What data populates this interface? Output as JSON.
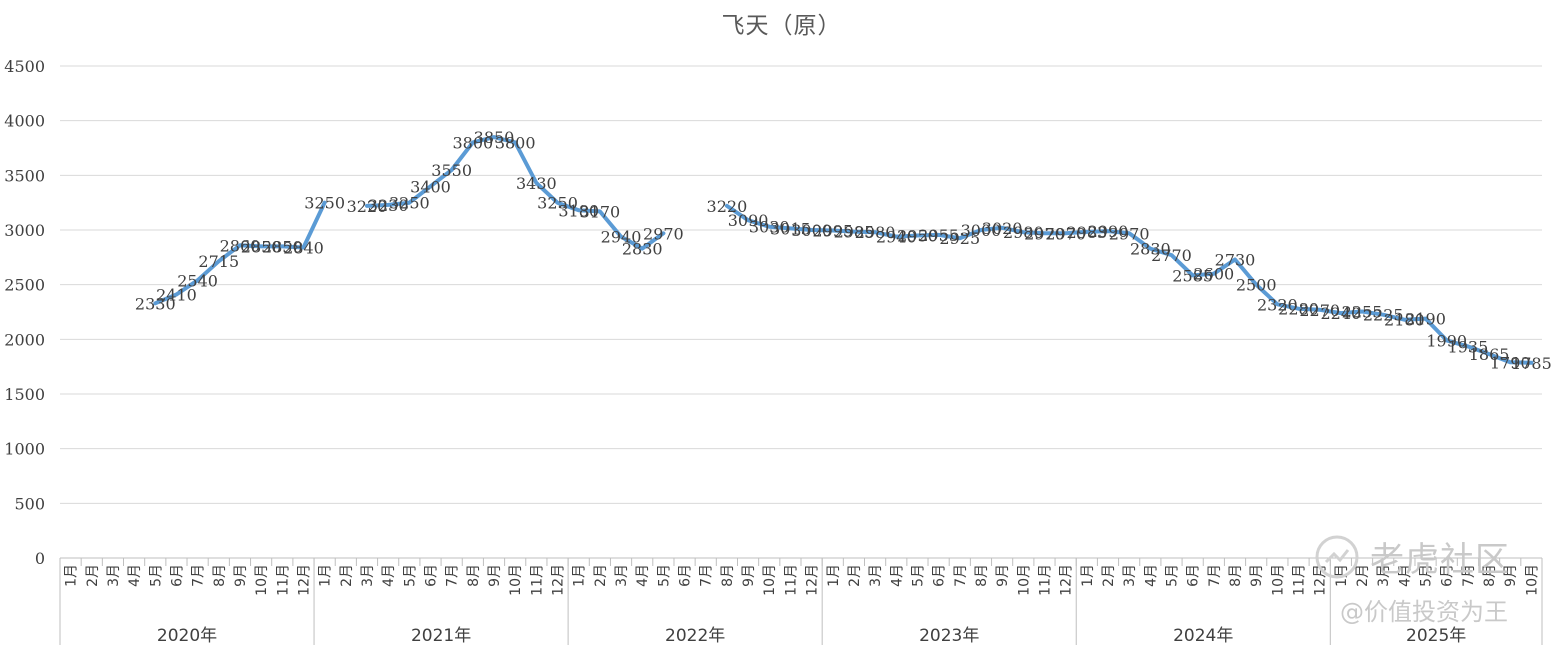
{
  "chart_data": {
    "type": "line",
    "title": "飞天（原）",
    "xlabel": "",
    "ylabel": "",
    "ylim": [
      0,
      4500
    ],
    "y_ticks": [
      0,
      500,
      1000,
      1500,
      2000,
      2500,
      3000,
      3500,
      4000,
      4500
    ],
    "grid": true,
    "legend": "none",
    "line_color": "#5b9bd5",
    "years": [
      {
        "label": "2020年",
        "months": [
          "1月",
          "2月",
          "3月",
          "4月",
          "5月",
          "6月",
          "7月",
          "8月",
          "9月",
          "10月",
          "11月",
          "12月"
        ]
      },
      {
        "label": "2021年",
        "months": [
          "1月",
          "2月",
          "3月",
          "4月",
          "5月",
          "6月",
          "7月",
          "8月",
          "9月",
          "10月",
          "11月",
          "12月"
        ]
      },
      {
        "label": "2022年",
        "months": [
          "1月",
          "2月",
          "3月",
          "4月",
          "5月",
          "6月",
          "7月",
          "8月",
          "9月",
          "10月",
          "11月",
          "12月"
        ]
      },
      {
        "label": "2023年",
        "months": [
          "1月",
          "2月",
          "3月",
          "4月",
          "5月",
          "6月",
          "7月",
          "8月",
          "9月",
          "10月",
          "11月",
          "12月"
        ]
      },
      {
        "label": "2024年",
        "months": [
          "1月",
          "2月",
          "3月",
          "4月",
          "5月",
          "6月",
          "7月",
          "8月",
          "9月",
          "10月",
          "11月",
          "12月"
        ]
      },
      {
        "label": "2025年",
        "months": [
          "1月",
          "2月",
          "3月",
          "4月",
          "5月",
          "6月",
          "7月",
          "8月",
          "9月",
          "10月"
        ]
      }
    ],
    "series": [
      {
        "values": [
          null,
          null,
          null,
          null,
          2330,
          2410,
          2540,
          2715,
          2860,
          2850,
          2850,
          2840,
          3250,
          null,
          3220,
          3230,
          3250,
          3400,
          3550,
          3800,
          3850,
          3800,
          3430,
          3250,
          3180,
          3170,
          2940,
          2830,
          2970,
          null,
          null,
          3220,
          3090,
          3030,
          3015,
          3000,
          2995,
          2985,
          2980,
          2940,
          2950,
          2955,
          2925,
          3000,
          3020,
          2980,
          2970,
          2970,
          2983,
          2990,
          2970,
          2830,
          2770,
          2585,
          2600,
          2730,
          2500,
          2320,
          2280,
          2270,
          2240,
          2255,
          2225,
          2180,
          2190,
          1990,
          1935,
          1865,
          1790,
          1785
        ]
      }
    ]
  },
  "watermark": {
    "main": "老虎社区",
    "sub": "@价值投资为王"
  }
}
